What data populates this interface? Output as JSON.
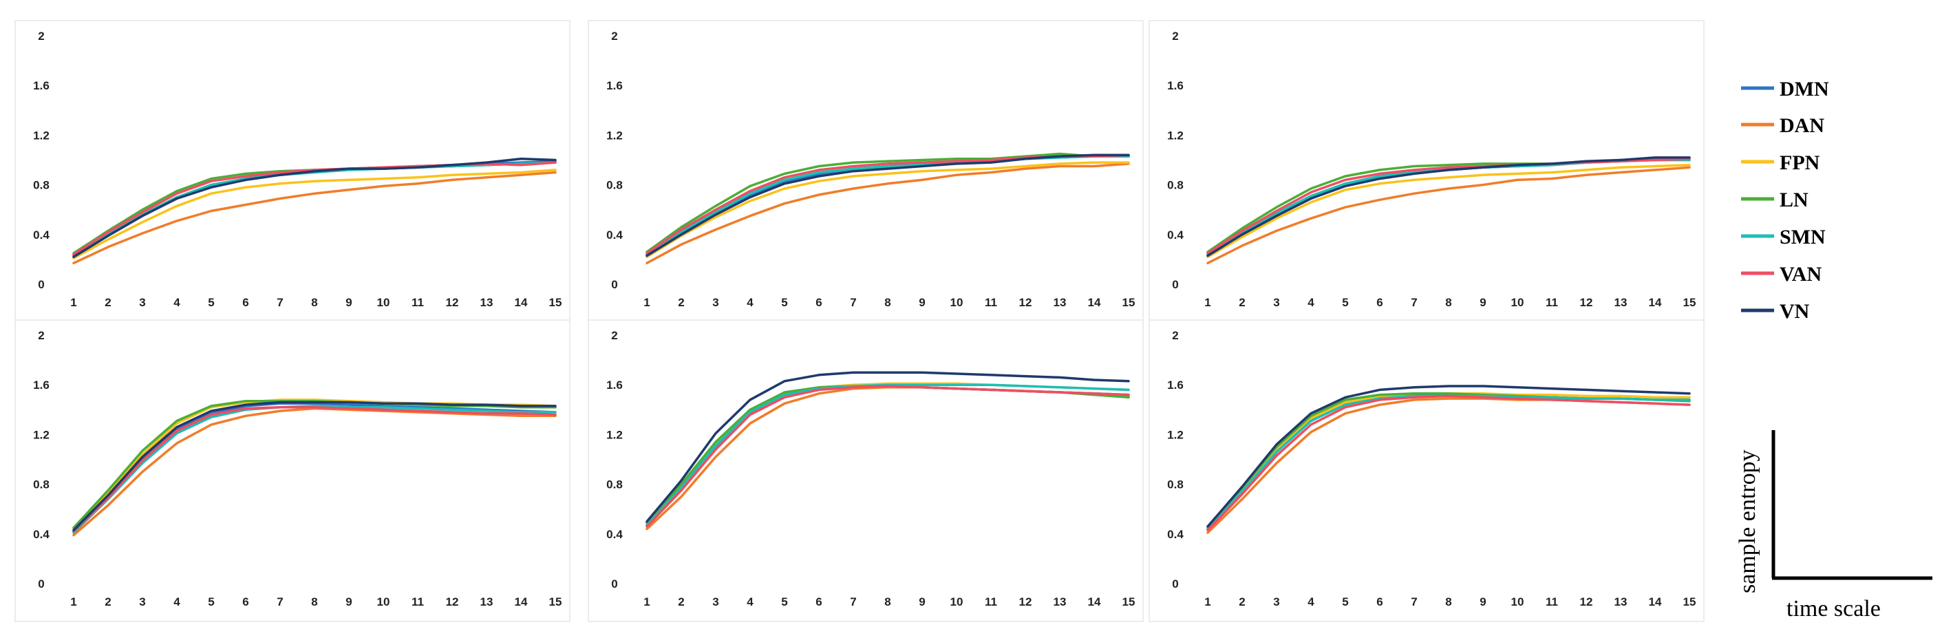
{
  "series_names": [
    "DMN",
    "DAN",
    "FPN",
    "LN",
    "SMN",
    "VAN",
    "VN"
  ],
  "series_colors": [
    "#2e75c4",
    "#f07d2a",
    "#fbc21a",
    "#4cae37",
    "#1cbfb5",
    "#ee4e64",
    "#1f3a6c"
  ],
  "axis_titles": {
    "y": "sample entropy",
    "x": "time scale"
  },
  "chart_data": [
    {
      "type": "line",
      "panel": "top-left",
      "x": [
        1,
        2,
        3,
        4,
        5,
        6,
        7,
        8,
        9,
        10,
        11,
        12,
        13,
        14,
        15
      ],
      "xticks": [
        "1",
        "2",
        "3",
        "4",
        "5",
        "6",
        "7",
        "8",
        "9",
        "10",
        "11",
        "12",
        "13",
        "14",
        "15"
      ],
      "ylim": [
        0,
        2
      ],
      "yticks": [
        "0",
        "0.4",
        "0.8",
        "1.2",
        "1.6",
        "2"
      ],
      "series": [
        {
          "name": "DMN",
          "values": [
            0.23,
            0.4,
            0.56,
            0.7,
            0.8,
            0.85,
            0.89,
            0.91,
            0.93,
            0.94,
            0.95,
            0.96,
            0.97,
            0.98,
            0.99
          ]
        },
        {
          "name": "DAN",
          "values": [
            0.17,
            0.3,
            0.41,
            0.51,
            0.59,
            0.64,
            0.69,
            0.73,
            0.76,
            0.79,
            0.81,
            0.84,
            0.86,
            0.88,
            0.9
          ]
        },
        {
          "name": "FPN",
          "values": [
            0.21,
            0.36,
            0.5,
            0.63,
            0.73,
            0.78,
            0.81,
            0.83,
            0.84,
            0.85,
            0.86,
            0.88,
            0.89,
            0.9,
            0.92
          ]
        },
        {
          "name": "LN",
          "values": [
            0.25,
            0.43,
            0.6,
            0.75,
            0.85,
            0.89,
            0.91,
            0.92,
            0.93,
            0.93,
            0.94,
            0.95,
            0.96,
            0.97,
            0.98
          ]
        },
        {
          "name": "SMN",
          "values": [
            0.23,
            0.4,
            0.56,
            0.7,
            0.8,
            0.85,
            0.88,
            0.9,
            0.92,
            0.93,
            0.94,
            0.95,
            0.96,
            0.97,
            0.98
          ]
        },
        {
          "name": "VAN",
          "values": [
            0.24,
            0.42,
            0.58,
            0.73,
            0.83,
            0.87,
            0.9,
            0.92,
            0.93,
            0.94,
            0.95,
            0.96,
            0.97,
            0.96,
            0.98
          ]
        },
        {
          "name": "VN",
          "values": [
            0.22,
            0.39,
            0.55,
            0.69,
            0.78,
            0.84,
            0.88,
            0.91,
            0.93,
            0.93,
            0.94,
            0.96,
            0.98,
            1.01,
            1.0
          ]
        }
      ]
    },
    {
      "type": "line",
      "panel": "top-middle",
      "x": [
        1,
        2,
        3,
        4,
        5,
        6,
        7,
        8,
        9,
        10,
        11,
        12,
        13,
        14,
        15
      ],
      "xticks": [
        "1",
        "2",
        "3",
        "4",
        "5",
        "6",
        "7",
        "8",
        "9",
        "10",
        "11",
        "12",
        "13",
        "14",
        "15"
      ],
      "ylim": [
        0,
        2
      ],
      "yticks": [
        "0",
        "0.4",
        "0.8",
        "1.2",
        "1.6",
        "2"
      ],
      "series": [
        {
          "name": "DMN",
          "values": [
            0.24,
            0.42,
            0.58,
            0.72,
            0.83,
            0.89,
            0.93,
            0.95,
            0.97,
            0.98,
            0.99,
            1.01,
            1.02,
            1.03,
            1.03
          ]
        },
        {
          "name": "DAN",
          "values": [
            0.17,
            0.32,
            0.44,
            0.55,
            0.65,
            0.72,
            0.77,
            0.81,
            0.84,
            0.88,
            0.9,
            0.93,
            0.95,
            0.95,
            0.97
          ]
        },
        {
          "name": "FPN",
          "values": [
            0.22,
            0.39,
            0.54,
            0.67,
            0.77,
            0.83,
            0.87,
            0.89,
            0.91,
            0.92,
            0.93,
            0.95,
            0.97,
            0.98,
            0.98
          ]
        },
        {
          "name": "LN",
          "values": [
            0.26,
            0.46,
            0.63,
            0.79,
            0.89,
            0.95,
            0.98,
            0.99,
            1.0,
            1.01,
            1.01,
            1.03,
            1.05,
            1.03,
            1.03
          ]
        },
        {
          "name": "SMN",
          "values": [
            0.24,
            0.42,
            0.58,
            0.73,
            0.84,
            0.9,
            0.93,
            0.95,
            0.97,
            0.99,
            1.0,
            1.01,
            1.02,
            1.03,
            1.03
          ]
        },
        {
          "name": "VAN",
          "values": [
            0.25,
            0.44,
            0.6,
            0.75,
            0.86,
            0.92,
            0.95,
            0.97,
            0.98,
            0.99,
            1.0,
            1.02,
            1.03,
            1.03,
            1.04
          ]
        },
        {
          "name": "VN",
          "values": [
            0.23,
            0.4,
            0.56,
            0.7,
            0.81,
            0.87,
            0.91,
            0.93,
            0.95,
            0.97,
            0.98,
            1.01,
            1.03,
            1.04,
            1.04
          ]
        }
      ]
    },
    {
      "type": "line",
      "panel": "top-right",
      "x": [
        1,
        2,
        3,
        4,
        5,
        6,
        7,
        8,
        9,
        10,
        11,
        12,
        13,
        14,
        15
      ],
      "xticks": [
        "1",
        "2",
        "3",
        "4",
        "5",
        "6",
        "7",
        "8",
        "9",
        "10",
        "11",
        "12",
        "13",
        "14",
        "15"
      ],
      "ylim": [
        0,
        2
      ],
      "yticks": [
        "0",
        "0.4",
        "0.8",
        "1.2",
        "1.6",
        "2"
      ],
      "series": [
        {
          "name": "DMN",
          "values": [
            0.24,
            0.41,
            0.57,
            0.71,
            0.81,
            0.87,
            0.9,
            0.92,
            0.94,
            0.95,
            0.96,
            0.98,
            1.0,
            1.01,
            1.01
          ]
        },
        {
          "name": "DAN",
          "values": [
            0.17,
            0.31,
            0.43,
            0.53,
            0.62,
            0.68,
            0.73,
            0.77,
            0.8,
            0.84,
            0.85,
            0.88,
            0.9,
            0.92,
            0.94
          ]
        },
        {
          "name": "FPN",
          "values": [
            0.22,
            0.38,
            0.53,
            0.66,
            0.76,
            0.81,
            0.84,
            0.86,
            0.88,
            0.89,
            0.9,
            0.92,
            0.94,
            0.95,
            0.96
          ]
        },
        {
          "name": "LN",
          "values": [
            0.26,
            0.45,
            0.62,
            0.77,
            0.87,
            0.92,
            0.95,
            0.96,
            0.97,
            0.97,
            0.97,
            0.98,
            0.99,
            1.0,
            1.0
          ]
        },
        {
          "name": "SMN",
          "values": [
            0.24,
            0.41,
            0.57,
            0.71,
            0.81,
            0.87,
            0.9,
            0.92,
            0.94,
            0.95,
            0.96,
            0.98,
            0.99,
            1.0,
            1.0
          ]
        },
        {
          "name": "VAN",
          "values": [
            0.25,
            0.43,
            0.59,
            0.74,
            0.84,
            0.89,
            0.92,
            0.94,
            0.95,
            0.96,
            0.97,
            0.98,
            0.99,
            1.0,
            1.01
          ]
        },
        {
          "name": "VN",
          "values": [
            0.23,
            0.4,
            0.55,
            0.69,
            0.79,
            0.85,
            0.89,
            0.92,
            0.94,
            0.96,
            0.97,
            0.99,
            1.0,
            1.02,
            1.02
          ]
        }
      ]
    },
    {
      "type": "line",
      "panel": "bottom-left",
      "x": [
        1,
        2,
        3,
        4,
        5,
        6,
        7,
        8,
        9,
        10,
        11,
        12,
        13,
        14,
        15
      ],
      "xticks": [
        "1",
        "2",
        "3",
        "4",
        "5",
        "6",
        "7",
        "8",
        "9",
        "10",
        "11",
        "12",
        "13",
        "14",
        "15"
      ],
      "ylim": [
        0,
        2
      ],
      "yticks": [
        "0",
        "0.4",
        "0.8",
        "1.2",
        "1.6",
        "2"
      ],
      "series": [
        {
          "name": "DMN",
          "values": [
            0.42,
            0.7,
            1.0,
            1.24,
            1.37,
            1.43,
            1.45,
            1.45,
            1.44,
            1.43,
            1.42,
            1.41,
            1.4,
            1.39,
            1.38
          ]
        },
        {
          "name": "DAN",
          "values": [
            0.39,
            0.63,
            0.9,
            1.13,
            1.28,
            1.35,
            1.39,
            1.41,
            1.4,
            1.39,
            1.38,
            1.37,
            1.36,
            1.35,
            1.35
          ]
        },
        {
          "name": "FPN",
          "values": [
            0.44,
            0.73,
            1.04,
            1.29,
            1.42,
            1.46,
            1.48,
            1.48,
            1.47,
            1.46,
            1.45,
            1.45,
            1.44,
            1.44,
            1.43
          ]
        },
        {
          "name": "LN",
          "values": [
            0.45,
            0.75,
            1.07,
            1.31,
            1.43,
            1.47,
            1.47,
            1.47,
            1.46,
            1.45,
            1.44,
            1.43,
            1.43,
            1.42,
            1.42
          ]
        },
        {
          "name": "SMN",
          "values": [
            0.41,
            0.68,
            0.97,
            1.21,
            1.34,
            1.4,
            1.42,
            1.43,
            1.42,
            1.42,
            1.41,
            1.4,
            1.39,
            1.38,
            1.38
          ]
        },
        {
          "name": "VAN",
          "values": [
            0.42,
            0.69,
            0.99,
            1.23,
            1.36,
            1.41,
            1.42,
            1.42,
            1.41,
            1.4,
            1.39,
            1.38,
            1.37,
            1.37,
            1.36
          ]
        },
        {
          "name": "VN",
          "values": [
            0.43,
            0.71,
            1.02,
            1.26,
            1.39,
            1.44,
            1.46,
            1.46,
            1.46,
            1.45,
            1.45,
            1.44,
            1.44,
            1.43,
            1.43
          ]
        }
      ]
    },
    {
      "type": "line",
      "panel": "bottom-middle",
      "x": [
        1,
        2,
        3,
        4,
        5,
        6,
        7,
        8,
        9,
        10,
        11,
        12,
        13,
        14,
        15
      ],
      "xticks": [
        "1",
        "2",
        "3",
        "4",
        "5",
        "6",
        "7",
        "8",
        "9",
        "10",
        "11",
        "12",
        "13",
        "14",
        "15"
      ],
      "ylim": [
        0,
        2
      ],
      "yticks": [
        "0",
        "0.4",
        "0.8",
        "1.2",
        "1.6",
        "2"
      ],
      "series": [
        {
          "name": "DMN",
          "values": [
            0.47,
            0.77,
            1.1,
            1.38,
            1.52,
            1.57,
            1.59,
            1.59,
            1.58,
            1.57,
            1.56,
            1.55,
            1.54,
            1.53,
            1.52
          ]
        },
        {
          "name": "DAN",
          "values": [
            0.44,
            0.7,
            1.02,
            1.29,
            1.45,
            1.53,
            1.57,
            1.58,
            1.58,
            1.57,
            1.56,
            1.55,
            1.54,
            1.53,
            1.51
          ]
        },
        {
          "name": "FPN",
          "values": [
            0.48,
            0.79,
            1.13,
            1.4,
            1.53,
            1.58,
            1.6,
            1.61,
            1.61,
            1.61,
            1.6,
            1.59,
            1.58,
            1.57,
            1.56
          ]
        },
        {
          "name": "LN",
          "values": [
            0.49,
            0.8,
            1.14,
            1.4,
            1.54,
            1.58,
            1.59,
            1.59,
            1.58,
            1.57,
            1.56,
            1.55,
            1.54,
            1.52,
            1.5
          ]
        },
        {
          "name": "SMN",
          "values": [
            0.47,
            0.77,
            1.11,
            1.38,
            1.52,
            1.57,
            1.59,
            1.6,
            1.6,
            1.6,
            1.6,
            1.59,
            1.58,
            1.57,
            1.56
          ]
        },
        {
          "name": "VAN",
          "values": [
            0.46,
            0.75,
            1.08,
            1.36,
            1.5,
            1.56,
            1.58,
            1.59,
            1.58,
            1.57,
            1.56,
            1.55,
            1.54,
            1.53,
            1.52
          ]
        },
        {
          "name": "VN",
          "values": [
            0.5,
            0.83,
            1.21,
            1.48,
            1.63,
            1.68,
            1.7,
            1.7,
            1.7,
            1.69,
            1.68,
            1.67,
            1.66,
            1.64,
            1.63
          ]
        }
      ]
    },
    {
      "type": "line",
      "panel": "bottom-right",
      "x": [
        1,
        2,
        3,
        4,
        5,
        6,
        7,
        8,
        9,
        10,
        11,
        12,
        13,
        14,
        15
      ],
      "xticks": [
        "1",
        "2",
        "3",
        "4",
        "5",
        "6",
        "7",
        "8",
        "9",
        "10",
        "11",
        "12",
        "13",
        "14",
        "15"
      ],
      "ylim": [
        0,
        2
      ],
      "yticks": [
        "0",
        "0.4",
        "0.8",
        "1.2",
        "1.6",
        "2"
      ],
      "series": [
        {
          "name": "DMN",
          "values": [
            0.44,
            0.74,
            1.06,
            1.31,
            1.45,
            1.5,
            1.52,
            1.52,
            1.51,
            1.5,
            1.5,
            1.49,
            1.49,
            1.48,
            1.48
          ]
        },
        {
          "name": "DAN",
          "values": [
            0.41,
            0.68,
            0.97,
            1.22,
            1.37,
            1.44,
            1.48,
            1.49,
            1.49,
            1.48,
            1.48,
            1.47,
            1.46,
            1.45,
            1.44
          ]
        },
        {
          "name": "FPN",
          "values": [
            0.45,
            0.76,
            1.08,
            1.33,
            1.46,
            1.51,
            1.53,
            1.53,
            1.53,
            1.52,
            1.52,
            1.51,
            1.51,
            1.5,
            1.5
          ]
        },
        {
          "name": "LN",
          "values": [
            0.46,
            0.77,
            1.1,
            1.35,
            1.48,
            1.52,
            1.53,
            1.53,
            1.52,
            1.51,
            1.5,
            1.49,
            1.49,
            1.48,
            1.47
          ]
        },
        {
          "name": "SMN",
          "values": [
            0.44,
            0.74,
            1.06,
            1.31,
            1.44,
            1.49,
            1.51,
            1.51,
            1.51,
            1.5,
            1.5,
            1.49,
            1.49,
            1.48,
            1.48
          ]
        },
        {
          "name": "VAN",
          "values": [
            0.43,
            0.72,
            1.03,
            1.28,
            1.42,
            1.48,
            1.5,
            1.51,
            1.5,
            1.49,
            1.48,
            1.47,
            1.46,
            1.45,
            1.44
          ]
        },
        {
          "name": "VN",
          "values": [
            0.46,
            0.78,
            1.12,
            1.37,
            1.5,
            1.56,
            1.58,
            1.59,
            1.59,
            1.58,
            1.57,
            1.56,
            1.55,
            1.54,
            1.53
          ]
        }
      ]
    }
  ]
}
